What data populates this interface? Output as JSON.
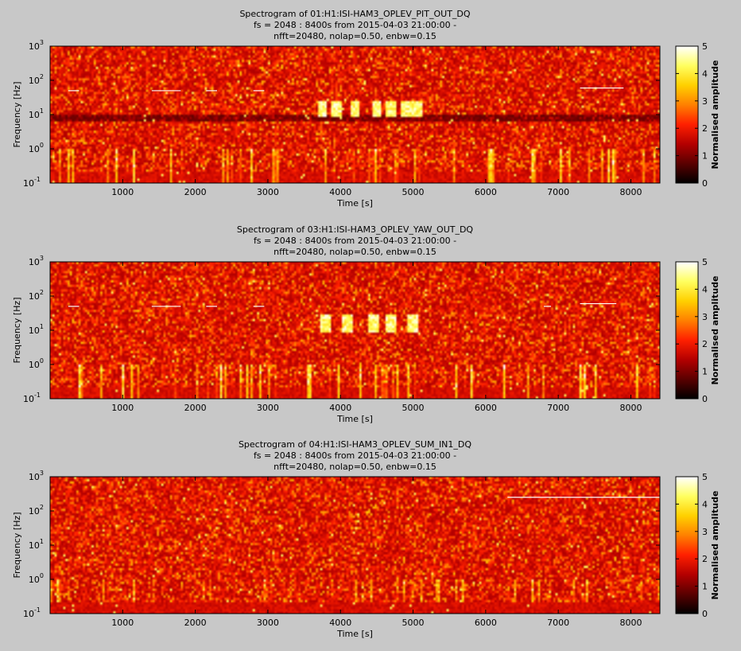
{
  "figure": {
    "background": "#c8c8c8",
    "colormap": "hot",
    "colormap_stops": [
      "#000000",
      "#5a0000",
      "#b40000",
      "#ff2000",
      "#ff8000",
      "#ffd000",
      "#ffff60",
      "#ffffff"
    ]
  },
  "chart_data": [
    {
      "type": "heatmap",
      "title": "Spectrogram of 01:H1:ISI-HAM3_OPLEV_PIT_OUT_DQ",
      "subtitle1": "fs = 2048 : 8400s from 2015-04-03 21:00:00 -",
      "subtitle2": "nfft=20480, nolap=0.50, enbw=0.15",
      "xlabel": "Time [s]",
      "ylabel": "Frequency [Hz]",
      "xlim": [
        0,
        8400
      ],
      "ylim": [
        0.1,
        1000
      ],
      "yscale": "log",
      "xticks": [
        1000,
        2000,
        3000,
        4000,
        5000,
        6000,
        7000,
        8000
      ],
      "yticks": [
        {
          "base": "10",
          "exp": "-1"
        },
        {
          "base": "10",
          "exp": "0"
        },
        {
          "base": "10",
          "exp": "1"
        },
        {
          "base": "10",
          "exp": "2"
        },
        {
          "base": "10",
          "exp": "3"
        }
      ],
      "colorbar": {
        "label": "Normalised amplitude",
        "ticks": [
          0,
          1,
          2,
          3,
          4,
          5
        ],
        "range": [
          0,
          5
        ]
      },
      "bursts": [
        [
          3750,
          8,
          25
        ],
        [
          3950,
          8,
          25
        ],
        [
          4200,
          8,
          25
        ],
        [
          4500,
          8,
          25
        ],
        [
          4700,
          8,
          25
        ],
        [
          4900,
          8,
          25
        ],
        [
          5050,
          8,
          25
        ]
      ],
      "lines": [
        [
          250,
          400,
          50
        ],
        [
          1400,
          1800,
          50
        ],
        [
          2150,
          2300,
          50
        ],
        [
          2800,
          2950,
          50
        ],
        [
          7300,
          7900,
          60
        ]
      ]
    },
    {
      "type": "heatmap",
      "title": "Spectrogram of 03:H1:ISI-HAM3_OPLEV_YAW_OUT_DQ",
      "subtitle1": "fs = 2048 : 8400s from 2015-04-03 21:00:00 -",
      "subtitle2": "nfft=20480, nolap=0.50, enbw=0.15",
      "xlabel": "Time [s]",
      "ylabel": "Frequency [Hz]",
      "xlim": [
        0,
        8400
      ],
      "ylim": [
        0.1,
        1000
      ],
      "yscale": "log",
      "xticks": [
        1000,
        2000,
        3000,
        4000,
        5000,
        6000,
        7000,
        8000
      ],
      "yticks": [
        {
          "base": "10",
          "exp": "-1"
        },
        {
          "base": "10",
          "exp": "0"
        },
        {
          "base": "10",
          "exp": "1"
        },
        {
          "base": "10",
          "exp": "2"
        },
        {
          "base": "10",
          "exp": "3"
        }
      ],
      "colorbar": {
        "label": "Normalised amplitude",
        "ticks": [
          0,
          1,
          2,
          3,
          4,
          5
        ],
        "range": [
          0,
          5
        ]
      },
      "bursts": [
        [
          3800,
          8,
          30
        ],
        [
          4100,
          8,
          30
        ],
        [
          4450,
          8,
          30
        ],
        [
          4700,
          8,
          30
        ],
        [
          5000,
          8,
          30
        ]
      ],
      "lines": [
        [
          250,
          400,
          50
        ],
        [
          1400,
          1800,
          50
        ],
        [
          2150,
          2300,
          50
        ],
        [
          2800,
          2950,
          50
        ],
        [
          6800,
          6900,
          50
        ],
        [
          7300,
          7800,
          60
        ]
      ]
    },
    {
      "type": "heatmap",
      "title": "Spectrogram of 04:H1:ISI-HAM3_OPLEV_SUM_IN1_DQ",
      "subtitle1": "fs = 2048 : 8400s from 2015-04-03 21:00:00 -",
      "subtitle2": "nfft=20480, nolap=0.50, enbw=0.15",
      "xlabel": "Time [s]",
      "ylabel": "Frequency [Hz]",
      "xlim": [
        0,
        8400
      ],
      "ylim": [
        0.1,
        1000
      ],
      "yscale": "log",
      "xticks": [
        1000,
        2000,
        3000,
        4000,
        5000,
        6000,
        7000,
        8000
      ],
      "yticks": [
        {
          "base": "10",
          "exp": "-1"
        },
        {
          "base": "10",
          "exp": "0"
        },
        {
          "base": "10",
          "exp": "1"
        },
        {
          "base": "10",
          "exp": "2"
        },
        {
          "base": "10",
          "exp": "3"
        }
      ],
      "colorbar": {
        "label": "Normalised amplitude",
        "ticks": [
          0,
          1,
          2,
          3,
          4,
          5
        ],
        "range": [
          0,
          5
        ]
      },
      "bursts": [],
      "lines": [
        [
          6300,
          8400,
          250
        ]
      ]
    }
  ]
}
